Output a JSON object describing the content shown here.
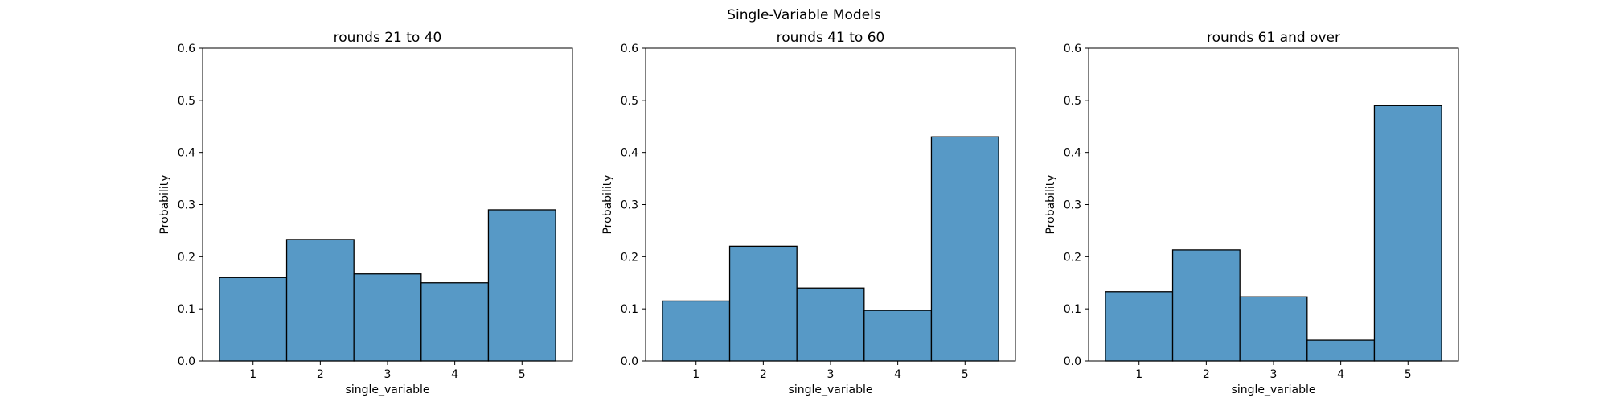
{
  "figure": {
    "suptitle": "Single-Variable Models",
    "colors": {
      "bar_fill": "#5799c6",
      "bar_edge": "#000000",
      "axes": "#000000"
    }
  },
  "chart_data": [
    {
      "type": "bar",
      "title": "rounds 21 to 40",
      "xlabel": "single_variable",
      "ylabel": "Probability",
      "categories": [
        "1",
        "2",
        "3",
        "4",
        "5"
      ],
      "values": [
        0.16,
        0.233,
        0.167,
        0.15,
        0.29
      ],
      "ylim": [
        0,
        0.6
      ],
      "yticks": [
        "0.0",
        "0.1",
        "0.2",
        "0.3",
        "0.4",
        "0.5",
        "0.6"
      ],
      "grid": false
    },
    {
      "type": "bar",
      "title": "rounds 41 to 60",
      "xlabel": "single_variable",
      "ylabel": "Probability",
      "categories": [
        "1",
        "2",
        "3",
        "4",
        "5"
      ],
      "values": [
        0.115,
        0.22,
        0.14,
        0.097,
        0.43
      ],
      "ylim": [
        0,
        0.6
      ],
      "yticks": [
        "0.0",
        "0.1",
        "0.2",
        "0.3",
        "0.4",
        "0.5",
        "0.6"
      ],
      "grid": false
    },
    {
      "type": "bar",
      "title": "rounds 61 and over",
      "xlabel": "single_variable",
      "ylabel": "Probability",
      "categories": [
        "1",
        "2",
        "3",
        "4",
        "5"
      ],
      "values": [
        0.133,
        0.213,
        0.123,
        0.04,
        0.49
      ],
      "ylim": [
        0,
        0.6
      ],
      "yticks": [
        "0.0",
        "0.1",
        "0.2",
        "0.3",
        "0.4",
        "0.5",
        "0.6"
      ],
      "grid": false
    }
  ]
}
